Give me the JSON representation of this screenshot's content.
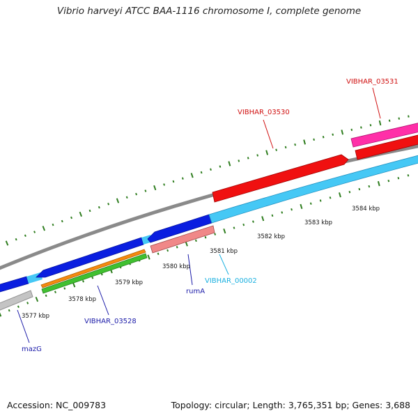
{
  "title": "Vibrio harveyi ATCC BAA-1116 chromosome I, complete genome",
  "footer": {
    "accession": "Accession: NC_009783",
    "topology": "Topology: circular; Length: 3,765,351 bp; Genes: 3,688"
  },
  "scale_labels": [
    "3577 kbp",
    "3578 kbp",
    "3579 kbp",
    "3580 kbp",
    "3581 kbp",
    "3582 kbp",
    "3583 kbp",
    "3584 kbp"
  ],
  "gene_labels": {
    "mazG": "mazG",
    "vibhar_03528": "VIBHAR_03528",
    "rumA": "rumA",
    "vibhar_00002": "VIBHAR_00002",
    "vibhar_03530": "VIBHAR_03530",
    "vibhar_03531": "VIBHAR_03531"
  },
  "colors": {
    "backbone": "#8a8a8a",
    "tick": "#2e7d1e",
    "cds_blue": "#0a1ee0",
    "cds_lightblue": "#45c8f5",
    "cds_red": "#f01010",
    "cds_pink": "#ff2fa8",
    "cds_salmon": "#f08888",
    "cds_orange": "#f58a10",
    "cds_green": "#40c030",
    "cds_grey": "#c4c4c4",
    "label_blue": "#1a1aa8",
    "label_cyan": "#1ab0e0",
    "label_red": "#d01010"
  }
}
